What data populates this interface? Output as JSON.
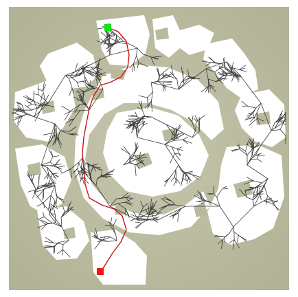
{
  "figure": {
    "description_colors": {
      "background": "#b7b79a",
      "free_space": "#ffffff",
      "tree_edges": "#3a3a3a",
      "path": "#c81414",
      "start_marker": "#18e018",
      "goal_marker": "#ff1010"
    },
    "markers": {
      "start": {
        "name": "start-marker",
        "shape": "square"
      },
      "goal": {
        "name": "goal-marker",
        "shape": "square"
      }
    }
  }
}
